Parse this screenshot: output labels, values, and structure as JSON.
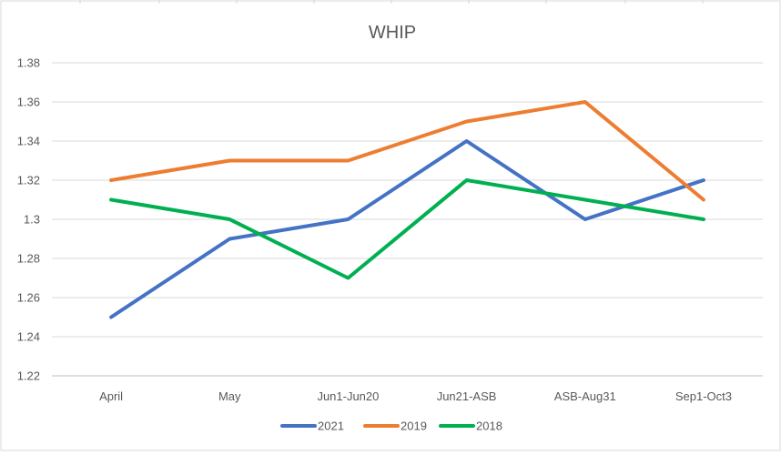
{
  "chart_data": {
    "type": "line",
    "title": "WHIP",
    "xlabel": "",
    "ylabel": "",
    "categories": [
      "April",
      "May",
      "Jun1-Jun20",
      "Jun21-ASB",
      "ASB-Aug31",
      "Sep1-Oct3"
    ],
    "ylim": [
      1.22,
      1.38
    ],
    "yticks": [
      "1.22",
      "1.24",
      "1.26",
      "1.28",
      "1.3",
      "1.32",
      "1.34",
      "1.36",
      "1.38"
    ],
    "grid": true,
    "legend_position": "bottom",
    "series": [
      {
        "name": "2021",
        "color": "#4472C4",
        "values": [
          1.25,
          1.29,
          1.3,
          1.34,
          1.3,
          1.32
        ]
      },
      {
        "name": "2019",
        "color": "#ED7D31",
        "values": [
          1.32,
          1.33,
          1.33,
          1.35,
          1.36,
          1.31
        ]
      },
      {
        "name": "2018",
        "color": "#00B050",
        "values": [
          1.31,
          1.3,
          1.27,
          1.32,
          1.31,
          1.3
        ]
      }
    ]
  }
}
